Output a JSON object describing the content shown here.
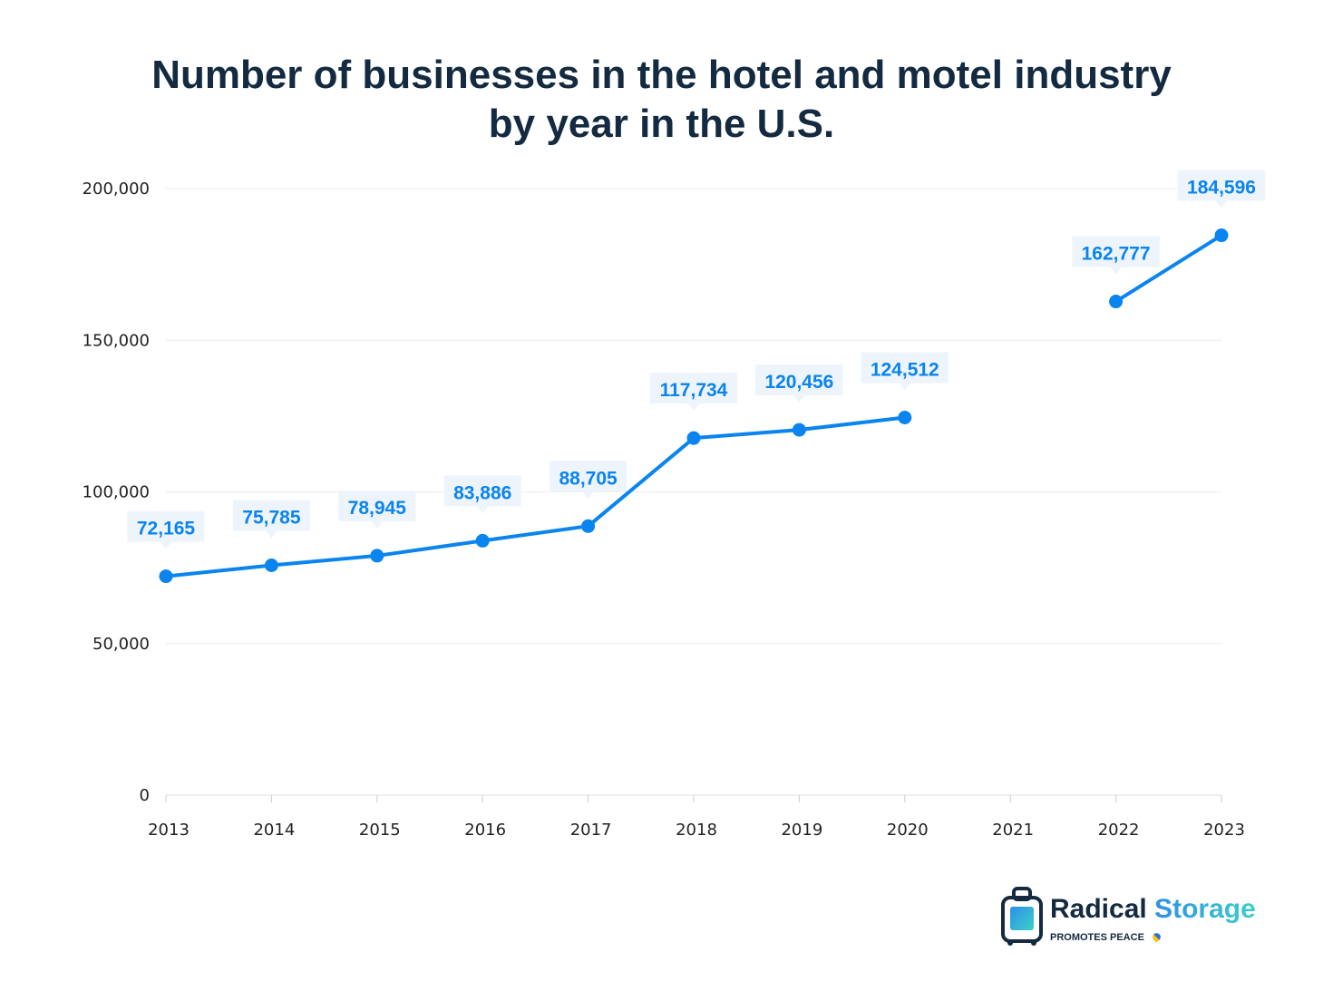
{
  "chart_data": {
    "type": "line",
    "title": [
      "Number of businesses in the hotel and motel industry",
      "by year in the U.S."
    ],
    "categories": [
      "2013",
      "2014",
      "2015",
      "2016",
      "2017",
      "2018",
      "2019",
      "2020",
      "2021",
      "2022",
      "2023"
    ],
    "values": [
      72165,
      75785,
      78945,
      83886,
      88705,
      117734,
      120456,
      124512,
      null,
      162777,
      184596
    ],
    "labels": [
      "72,165",
      "75,785",
      "78,945",
      "83,886",
      "88,705",
      "117,734",
      "120,456",
      "124,512",
      "",
      "162,777",
      "184,596"
    ],
    "ylim": [
      0,
      200000
    ],
    "yticks": [
      0,
      50000,
      100000,
      150000,
      200000
    ],
    "ytick_labels": [
      "0",
      "50,000",
      "100,000",
      "150,000",
      "200,000"
    ],
    "grid": true,
    "xlabel": "",
    "ylabel": "",
    "colors": {
      "line": "#0a84ee",
      "label_bg": "#eef4fc",
      "grid": "#ececec",
      "title": "#132a40"
    }
  },
  "logo": {
    "brand": "Radical",
    "brand2": "Storage",
    "tagline": "PROMOTES PEACE"
  }
}
